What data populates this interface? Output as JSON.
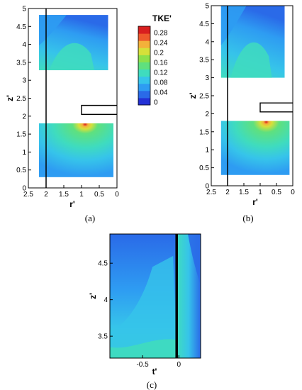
{
  "chart_data": [
    {
      "id": "a",
      "type": "heatmap",
      "caption": "(a)",
      "xlabel": "r'",
      "ylabel": "z'",
      "xlim": [
        2.5,
        0
      ],
      "ylim": [
        0,
        5
      ],
      "xticks": [
        "2.5",
        "2",
        "1.5",
        "1",
        "0.5",
        "0"
      ],
      "yticks": [
        "0",
        "0.5",
        "1",
        "1.5",
        "2",
        "2.5",
        "3",
        "3.5",
        "4",
        "4.5",
        "5"
      ],
      "upper_window": {
        "r": [
          2.2,
          0.25
        ],
        "z": [
          3.28,
          4.82
        ]
      },
      "lower_window": {
        "r": [
          2.2,
          0.1
        ],
        "z": [
          0.3,
          1.8
        ]
      },
      "hot_spot": {
        "r": 0.95,
        "z": 1.75
      },
      "ref_line_r": 2
    },
    {
      "id": "b",
      "type": "heatmap",
      "caption": "(b)",
      "xlabel": "r'",
      "ylabel": "z'",
      "xlim": [
        2.5,
        0
      ],
      "ylim": [
        0,
        5
      ],
      "xticks": [
        "2.5",
        "2",
        "1.5",
        "1",
        "0.5",
        "0"
      ],
      "yticks": [
        "0",
        "0.5",
        "1",
        "1.5",
        "2",
        "2.5",
        "3",
        "3.5",
        "4",
        "4.5",
        "5"
      ],
      "upper_window": {
        "r": [
          2.2,
          0.25
        ],
        "z": [
          3.0,
          5.0
        ]
      },
      "lower_window": {
        "r": [
          2.2,
          0.1
        ],
        "z": [
          0.3,
          1.8
        ]
      },
      "hot_spot": {
        "r": 0.9,
        "z": 1.75
      },
      "ref_line_r": 2
    },
    {
      "id": "c",
      "type": "heatmap",
      "caption": "(c)",
      "xlabel": "t'",
      "ylabel": "z'",
      "xlim": [
        -0.95,
        0.3
      ],
      "ylim": [
        3.2,
        4.9
      ],
      "xticks": [
        "-0.5",
        "0"
      ],
      "yticks": [
        "3.5",
        "4",
        "4.5"
      ],
      "ref_line_t": -0.03
    }
  ],
  "colorbar": {
    "title": "TKE'",
    "levels": [
      "0.28",
      "0.24",
      "0.2",
      "0.16",
      "0.12",
      "0.08",
      "0.04",
      "0"
    ],
    "colors": [
      "#2331d6",
      "#2a6ae8",
      "#2e9cf2",
      "#36c4ea",
      "#3fdcbe",
      "#5fe07e",
      "#8de04b",
      "#d6e03a",
      "#f3b13a",
      "#ee5a2c",
      "#d81f1f"
    ]
  }
}
